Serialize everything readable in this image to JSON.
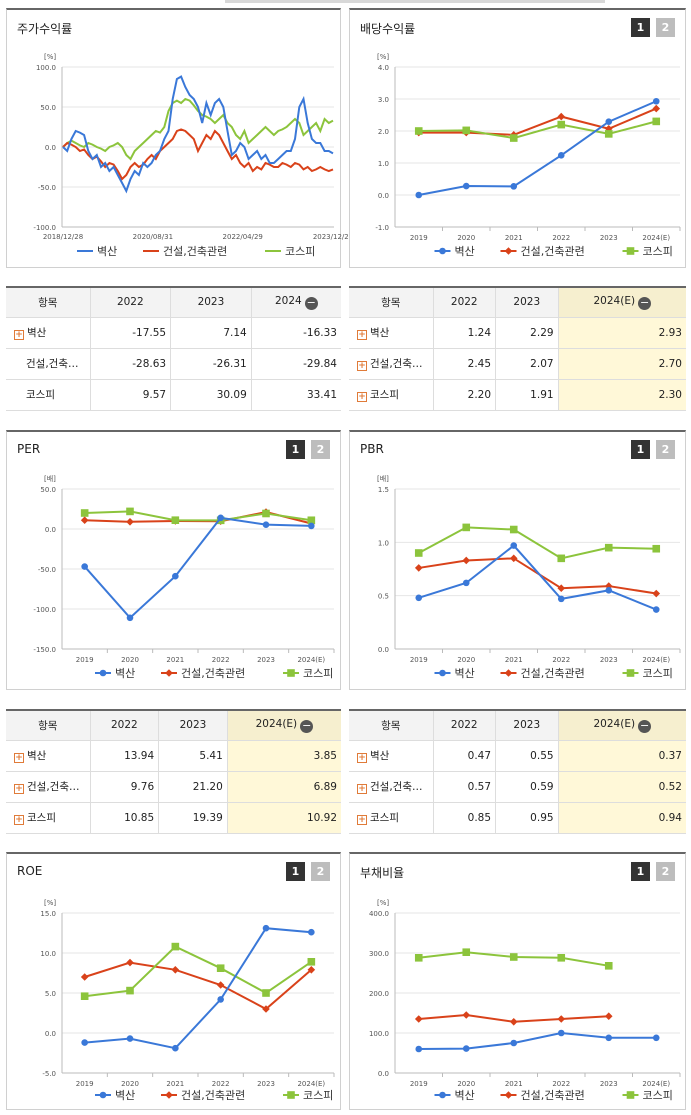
{
  "colors": {
    "byeoksan": "#3a78d8",
    "construction": "#d9421a",
    "kospi": "#8cc43c"
  },
  "legend": [
    "벽산",
    "건설,건축관련",
    "코스피"
  ],
  "panels": {
    "stock": {
      "title": "주가수익률",
      "unit": "[%]"
    },
    "dividend": {
      "title": "배당수익률",
      "unit": "[%]"
    },
    "per": {
      "title": "PER",
      "unit": "[배]"
    },
    "pbr": {
      "title": "PBR",
      "unit": "[배]"
    },
    "roe": {
      "title": "ROE",
      "unit": "[%]"
    },
    "debt": {
      "title": "부채비율",
      "unit": "[%]"
    }
  },
  "tabs": [
    "1",
    "2"
  ],
  "tables": {
    "stock": {
      "header": [
        "항목",
        "2022",
        "2023",
        "2024"
      ],
      "rows": [
        {
          "name": "벽산",
          "vals": [
            "-17.55",
            "7.14",
            "-16.33"
          ],
          "plus": true
        },
        {
          "name": "건설,건축…",
          "vals": [
            "-28.63",
            "-26.31",
            "-29.84"
          ],
          "plus": false
        },
        {
          "name": "코스피",
          "vals": [
            "9.57",
            "30.09",
            "33.41"
          ],
          "plus": false
        }
      ]
    },
    "dividend": {
      "header": [
        "항목",
        "2022",
        "2023",
        "2024(E)"
      ],
      "rows": [
        {
          "name": "벽산",
          "vals": [
            "1.24",
            "2.29",
            "2.93"
          ],
          "plus": true
        },
        {
          "name": "건설,건축…",
          "vals": [
            "2.45",
            "2.07",
            "2.70"
          ],
          "plus": true
        },
        {
          "name": "코스피",
          "vals": [
            "2.20",
            "1.91",
            "2.30"
          ],
          "plus": true
        }
      ]
    },
    "per": {
      "header": [
        "항목",
        "2022",
        "2023",
        "2024(E)"
      ],
      "rows": [
        {
          "name": "벽산",
          "vals": [
            "13.94",
            "5.41",
            "3.85"
          ],
          "plus": true
        },
        {
          "name": "건설,건축…",
          "vals": [
            "9.76",
            "21.20",
            "6.89"
          ],
          "plus": true
        },
        {
          "name": "코스피",
          "vals": [
            "10.85",
            "19.39",
            "10.92"
          ],
          "plus": true
        }
      ]
    },
    "pbr": {
      "header": [
        "항목",
        "2022",
        "2023",
        "2024(E)"
      ],
      "rows": [
        {
          "name": "벽산",
          "vals": [
            "0.47",
            "0.55",
            "0.37"
          ],
          "plus": true
        },
        {
          "name": "건설,건축…",
          "vals": [
            "0.57",
            "0.59",
            "0.52"
          ],
          "plus": true
        },
        {
          "name": "코스피",
          "vals": [
            "0.85",
            "0.95",
            "0.94"
          ],
          "plus": true
        }
      ]
    }
  },
  "chart_data": [
    {
      "id": "stock",
      "type": "line",
      "title": "주가수익률",
      "ylabel": "[%]",
      "ylim": [
        -100,
        100
      ],
      "yticks": [
        "100.0",
        "50.0",
        "0.0",
        "-50.0",
        "-100.0"
      ],
      "x_tick_labels": [
        "2018/12/28",
        "2020/08/31",
        "2022/04/29",
        "2023/12/28"
      ],
      "series": [
        {
          "name": "벽산",
          "values": [
            0,
            -5,
            10,
            20,
            18,
            15,
            -5,
            -15,
            -10,
            -25,
            -20,
            -30,
            -25,
            -35,
            -45,
            -55,
            -40,
            -30,
            -35,
            -20,
            -25,
            -20,
            -10,
            -5,
            10,
            20,
            60,
            85,
            88,
            75,
            65,
            60,
            50,
            30,
            55,
            40,
            55,
            60,
            50,
            20,
            -10,
            -5,
            5,
            0,
            -15,
            -10,
            -5,
            -15,
            -10,
            -20,
            -20,
            -15,
            -10,
            -5,
            -5,
            10,
            50,
            60,
            30,
            10,
            5,
            5,
            -5,
            -5,
            -8
          ],
          "x": [
            0,
            1,
            2,
            3,
            4,
            5,
            6,
            7,
            8,
            9,
            10,
            11,
            12,
            13,
            14,
            15,
            16,
            17,
            18,
            19,
            20,
            21,
            22,
            23,
            24,
            25,
            26,
            27,
            28,
            29,
            30,
            31,
            32,
            33,
            34,
            35,
            36,
            37,
            38,
            39,
            40,
            41,
            42,
            43,
            44,
            45,
            46,
            47,
            48,
            49,
            50,
            51,
            52,
            53,
            54,
            55,
            56,
            57,
            58,
            59,
            60,
            61,
            62,
            63,
            64
          ]
        },
        {
          "name": "건설,건축관련",
          "values": [
            0,
            5,
            3,
            0,
            -5,
            -3,
            -10,
            -15,
            -12,
            -18,
            -25,
            -20,
            -22,
            -30,
            -40,
            -35,
            -25,
            -20,
            -25,
            -22,
            -15,
            -10,
            -15,
            -5,
            0,
            5,
            10,
            20,
            22,
            20,
            15,
            10,
            -5,
            5,
            15,
            10,
            20,
            15,
            5,
            -5,
            -15,
            -10,
            -20,
            -25,
            -20,
            -30,
            -25,
            -28,
            -20,
            -22,
            -25,
            -25,
            -20,
            -22,
            -25,
            -20,
            -22,
            -28,
            -25,
            -30,
            -28,
            -25,
            -28,
            -30,
            -28
          ],
          "x": [
            0,
            1,
            2,
            3,
            4,
            5,
            6,
            7,
            8,
            9,
            10,
            11,
            12,
            13,
            14,
            15,
            16,
            17,
            18,
            19,
            20,
            21,
            22,
            23,
            24,
            25,
            26,
            27,
            28,
            29,
            30,
            31,
            32,
            33,
            34,
            35,
            36,
            37,
            38,
            39,
            40,
            41,
            42,
            43,
            44,
            45,
            46,
            47,
            48,
            49,
            50,
            51,
            52,
            53,
            54,
            55,
            56,
            57,
            58,
            59,
            60,
            61,
            62,
            63,
            64
          ]
        },
        {
          "name": "코스피",
          "values": [
            0,
            5,
            8,
            5,
            2,
            0,
            5,
            3,
            0,
            -2,
            -5,
            0,
            2,
            5,
            0,
            -10,
            -15,
            -5,
            0,
            5,
            10,
            15,
            20,
            18,
            25,
            45,
            55,
            58,
            55,
            60,
            58,
            52,
            45,
            40,
            38,
            35,
            30,
            35,
            40,
            30,
            25,
            15,
            10,
            20,
            5,
            10,
            15,
            20,
            25,
            20,
            15,
            20,
            22,
            25,
            30,
            35,
            30,
            15,
            20,
            25,
            30,
            20,
            35,
            30,
            33
          ],
          "x": [
            0,
            1,
            2,
            3,
            4,
            5,
            6,
            7,
            8,
            9,
            10,
            11,
            12,
            13,
            14,
            15,
            16,
            17,
            18,
            19,
            20,
            21,
            22,
            23,
            24,
            25,
            26,
            27,
            28,
            29,
            30,
            31,
            32,
            33,
            34,
            35,
            36,
            37,
            38,
            39,
            40,
            41,
            42,
            43,
            44,
            45,
            46,
            47,
            48,
            49,
            50,
            51,
            52,
            53,
            54,
            55,
            56,
            57,
            58,
            59,
            60,
            61,
            62,
            63,
            64
          ]
        }
      ]
    },
    {
      "id": "dividend",
      "type": "line",
      "title": "배당수익률",
      "ylabel": "[%]",
      "categories": [
        "2019",
        "2020",
        "2021",
        "2022",
        "2023",
        "2024(E)"
      ],
      "ylim": [
        -1,
        4
      ],
      "yticks": [
        "4.0",
        "3.0",
        "2.0",
        "1.0",
        "0.0",
        "-1.0"
      ],
      "series": [
        {
          "name": "벽산",
          "values": [
            0.0,
            0.28,
            0.27,
            1.24,
            2.29,
            2.93
          ]
        },
        {
          "name": "건설,건축관련",
          "values": [
            1.95,
            1.95,
            1.88,
            2.45,
            2.07,
            2.7
          ]
        },
        {
          "name": "코스피",
          "values": [
            2.0,
            2.02,
            1.78,
            2.2,
            1.91,
            2.3
          ]
        }
      ]
    },
    {
      "id": "per",
      "type": "line",
      "title": "PER",
      "ylabel": "[배]",
      "categories": [
        "2019",
        "2020",
        "2021",
        "2022",
        "2023",
        "2024(E)"
      ],
      "ylim": [
        -150,
        50
      ],
      "yticks": [
        "50.0",
        "0.0",
        "-50.0",
        "-100.0",
        "-150.0"
      ],
      "series": [
        {
          "name": "벽산",
          "values": [
            -47,
            -111,
            -59,
            13.94,
            5.41,
            3.85
          ]
        },
        {
          "name": "건설,건축관련",
          "values": [
            11,
            9,
            10,
            9.76,
            21.2,
            6.89
          ]
        },
        {
          "name": "코스피",
          "values": [
            20,
            22,
            11,
            10.85,
            19.39,
            10.92
          ]
        }
      ]
    },
    {
      "id": "pbr",
      "type": "line",
      "title": "PBR",
      "ylabel": "[배]",
      "categories": [
        "2019",
        "2020",
        "2021",
        "2022",
        "2023",
        "2024(E)"
      ],
      "ylim": [
        0,
        1.5
      ],
      "yticks": [
        "1.5",
        "1.0",
        "0.5",
        "0.0"
      ],
      "series": [
        {
          "name": "벽산",
          "values": [
            0.48,
            0.62,
            0.97,
            0.47,
            0.55,
            0.37
          ]
        },
        {
          "name": "건설,건축관련",
          "values": [
            0.76,
            0.83,
            0.85,
            0.57,
            0.59,
            0.52
          ]
        },
        {
          "name": "코스피",
          "values": [
            0.9,
            1.14,
            1.12,
            0.85,
            0.95,
            0.94
          ]
        }
      ]
    },
    {
      "id": "roe",
      "type": "line",
      "title": "ROE",
      "ylabel": "[%]",
      "categories": [
        "2019",
        "2020",
        "2021",
        "2022",
        "2023",
        "2024(E)"
      ],
      "ylim": [
        -5,
        15
      ],
      "yticks": [
        "15.0",
        "10.0",
        "5.0",
        "0.0",
        "-5.0"
      ],
      "series": [
        {
          "name": "벽산",
          "values": [
            -1.2,
            -0.7,
            -1.9,
            4.2,
            13.1,
            12.6
          ]
        },
        {
          "name": "건설,건축관련",
          "values": [
            7.0,
            8.8,
            7.9,
            6.0,
            3.0,
            7.9
          ]
        },
        {
          "name": "코스피",
          "values": [
            4.6,
            5.3,
            10.8,
            8.1,
            5.0,
            8.9
          ]
        }
      ]
    },
    {
      "id": "debt",
      "type": "line",
      "title": "부채비율",
      "ylabel": "[%]",
      "categories": [
        "2019",
        "2020",
        "2021",
        "2022",
        "2023",
        "2024(E)"
      ],
      "ylim": [
        0,
        400
      ],
      "yticks": [
        "400.0",
        "300.0",
        "200.0",
        "100.0",
        "0.0"
      ],
      "series": [
        {
          "name": "벽산",
          "values": [
            60,
            61,
            75,
            100,
            88,
            88
          ]
        },
        {
          "name": "건설,건축관련",
          "values": [
            135,
            145,
            128,
            135,
            142,
            null
          ]
        },
        {
          "name": "코스피",
          "values": [
            288,
            302,
            290,
            288,
            268,
            null
          ]
        }
      ]
    }
  ]
}
